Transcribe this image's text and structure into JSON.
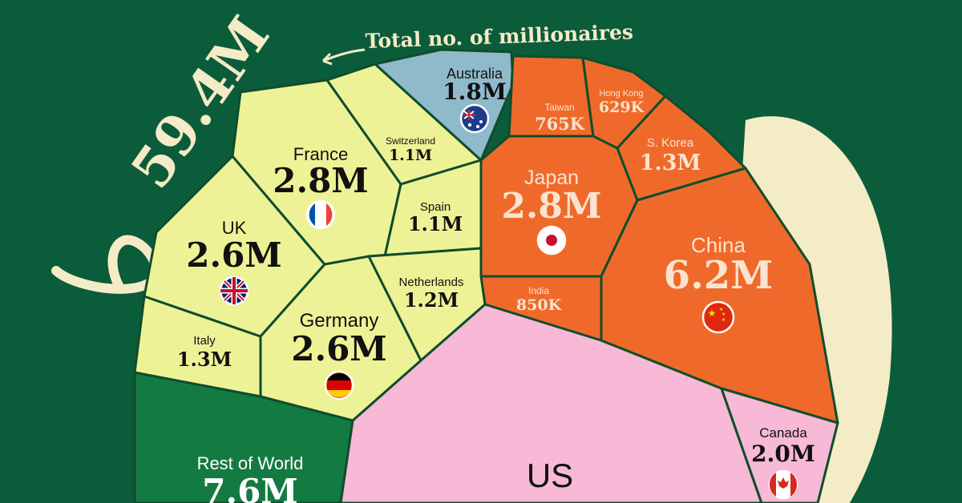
{
  "chart_data": {
    "type": "voronoi-treemap",
    "total": {
      "value": "59.4M",
      "label": "Total no. of millionaires"
    },
    "colors": {
      "background": "#0b5c3a",
      "europe": "#eef296",
      "asia": "#ef6a2a",
      "oceania": "#8fbacb",
      "north_america": "#f7b9d5",
      "rest_of_world": "#137a42",
      "decor": "#f4ebc7"
    },
    "cells": [
      {
        "country": "US",
        "value": "",
        "region": "north_america",
        "flag": "us-flag"
      },
      {
        "country": "China",
        "value": "6.2M",
        "region": "asia",
        "flag": "china-flag"
      },
      {
        "country": "Japan",
        "value": "2.8M",
        "region": "asia",
        "flag": "japan-flag"
      },
      {
        "country": "India",
        "value": "850K",
        "region": "asia"
      },
      {
        "country": "Taiwan",
        "value": "765K",
        "region": "asia"
      },
      {
        "country": "Hong Kong",
        "value": "629K",
        "region": "asia"
      },
      {
        "country": "S. Korea",
        "value": "1.3M",
        "region": "asia"
      },
      {
        "country": "Australia",
        "value": "1.8M",
        "region": "oceania",
        "flag": "australia-flag"
      },
      {
        "country": "France",
        "value": "2.8M",
        "region": "europe",
        "flag": "france-flag"
      },
      {
        "country": "UK",
        "value": "2.6M",
        "region": "europe",
        "flag": "uk-flag"
      },
      {
        "country": "Germany",
        "value": "2.6M",
        "region": "europe",
        "flag": "germany-flag"
      },
      {
        "country": "Italy",
        "value": "1.3M",
        "region": "europe"
      },
      {
        "country": "Switzerland",
        "value": "1.1M",
        "region": "europe"
      },
      {
        "country": "Spain",
        "value": "1.1M",
        "region": "europe"
      },
      {
        "country": "Netherlands",
        "value": "1.2M",
        "region": "europe"
      },
      {
        "country": "Canada",
        "value": "2.0M",
        "region": "north_america",
        "flag": "canada-flag"
      },
      {
        "country": "Rest of World",
        "value": "7.6M",
        "region": "rest_of_world"
      }
    ]
  }
}
